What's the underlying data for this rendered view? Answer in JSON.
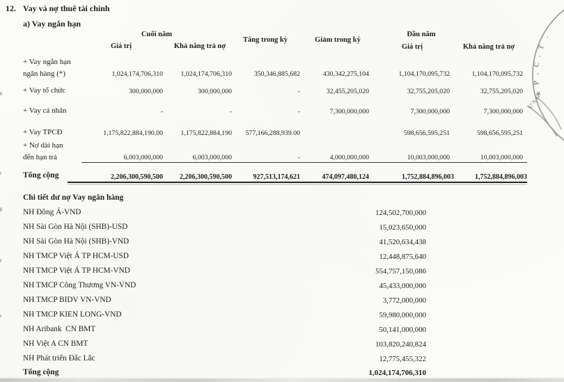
{
  "page": {
    "section_number": "12.",
    "section_title": "Vay và nợ thuê tài chính",
    "subsection_title": "a) Vay ngắn hạn"
  },
  "loan_table": {
    "group_end_of_year": "Cuối năm",
    "group_start_of_year": "Đầu năm",
    "col_value_end": "Giá trị",
    "col_capacity_end": "Khả năng trả nợ",
    "col_increase": "Tăng trong kỳ",
    "col_decrease": "Giảm trong kỳ",
    "col_value_start": "Giá trị",
    "col_capacity_start": "Khả năng trả nợ",
    "rows": [
      {
        "label_lines": [
          "+ Vay ngắn hạn",
          "ngân hàng (*)"
        ],
        "values": [
          "1,024,174,706,310",
          "1,024,174,706,310",
          "350,346,885,682",
          "430,342,275,104",
          "1,104,170,095,732",
          "1,104,170,095,732"
        ]
      },
      {
        "label_lines": [
          "+ Vay tổ chức"
        ],
        "values": [
          "300,000,000",
          "300,000,000",
          "-",
          "32,455,205,020",
          "32,755,205,020",
          "32,755,205,020"
        ]
      },
      {
        "label_lines": [
          "+ Vay cá nhân"
        ],
        "values": [
          "-",
          "-",
          "-",
          "7,300,000,000",
          "7,300,000,000",
          "7,300,000,000"
        ]
      },
      {
        "label_lines": [
          "+ Vay TPCĐ"
        ],
        "values": [
          "1,175,822,884,190.00",
          "1,175,822,884,190",
          "577,166,288,939.00",
          "",
          "598,656,595,251",
          "598,656,595,251"
        ]
      },
      {
        "label_lines": [
          "+ Nợ dài hạn",
          "đến hạn trả"
        ],
        "values": [
          "6,003,000,000",
          "6,003,000,000",
          "-",
          "4,000,000,000",
          "10,003,000,000",
          "10,003,000,000"
        ]
      }
    ],
    "total": {
      "label": "Tổng cộng",
      "values": [
        "2,206,300,590,500",
        "2,206,300,590,500",
        "927,513,174,621",
        "474,097,480,124",
        "1,752,884,896,003",
        "1,752,884,896,003"
      ]
    }
  },
  "bank_list": {
    "heading": "Chi tiết dư nợ Vay ngân hàng",
    "items": [
      {
        "name": "NH Đông Á-VND",
        "value": "124,502,700,000"
      },
      {
        "name": "NH Sài Gòn Hà Nội (SHB)-USD",
        "value": "15,023,650,000"
      },
      {
        "name": "NH Sài Gòn Hà Nội (SHB)-VND",
        "value": "41,520,634,438"
      },
      {
        "name": "NH TMCP Việt Á TP HCM-USD",
        "value": "12,448,875,640"
      },
      {
        "name": "NH TMCP Việt Á TP HCM-VND",
        "value": "554,757,150,086"
      },
      {
        "name": "NH TMCP Công Thương VN-VND",
        "value": "45,433,000,000"
      },
      {
        "name": "NH TMCP BIDV VN-VND",
        "value": "3,772,000,000"
      },
      {
        "name": "NH TMCP KIEN LONG-VND",
        "value": "59,980,000,000"
      },
      {
        "name": "NH Aribank  CN BMT",
        "value": "50,141,000,000"
      },
      {
        "name": "NH Việt A CN BMT",
        "value": "103,820,240,824"
      },
      {
        "name": "NH Phát triển Đắc Lắc",
        "value": "12,775,455,322"
      }
    ],
    "total": {
      "label": "Tổng cộng",
      "value": "1,024,174,706,310"
    }
  },
  "stamp": {
    "arc_text": ".T.C.P",
    "star": "★",
    "inner_text": "ƯNG"
  },
  "colors": {
    "text": "#1e1d1b",
    "paper": "#fbfbf9",
    "rule": "#3a3a38",
    "stamp": "#828280"
  }
}
